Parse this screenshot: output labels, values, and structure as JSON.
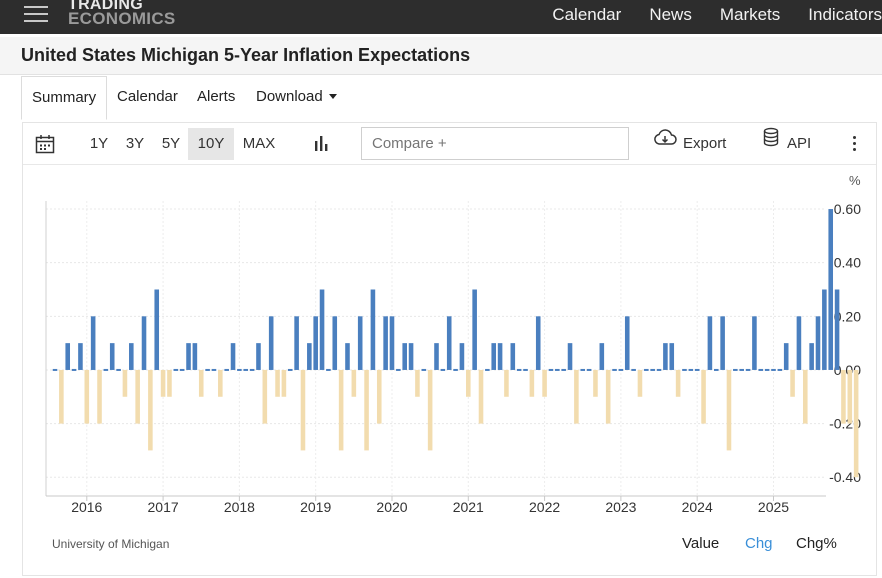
{
  "nav": {
    "logo_line1": "TRADING",
    "logo_line2": "ECONOMICS",
    "links": [
      "Calendar",
      "News",
      "Markets",
      "Indicators"
    ]
  },
  "page_title": "United States Michigan 5-Year Inflation Expectations",
  "tabs": [
    "Summary",
    "Calendar",
    "Alerts",
    "Download"
  ],
  "toolbar": {
    "ranges": [
      "1Y",
      "3Y",
      "5Y",
      "10Y",
      "MAX"
    ],
    "selected_range": "10Y",
    "compare_placeholder": "Compare +",
    "export_label": "Export",
    "api_label": "API"
  },
  "chart_unit": "%",
  "source": "University of Michigan",
  "view_modes": [
    "Value",
    "Chg",
    "Chg%"
  ],
  "active_mode": "Chg",
  "colors": {
    "positive": "#4a7fbf",
    "negative": "#f2dcae",
    "active_mode": "#3a8fd8",
    "nav_bg": "#2d2d2d"
  },
  "chart_data": {
    "type": "bar",
    "title": "",
    "xlabel": "",
    "ylabel": "",
    "x_tick_labels": [
      "2016",
      "2017",
      "2018",
      "2019",
      "2020",
      "2021",
      "2022",
      "2023",
      "2024",
      "2025"
    ],
    "y_tick_labels": [
      "0.60",
      "0.40",
      "0.20",
      "0.00",
      "-0.20",
      "-0.40"
    ],
    "ylim": [
      -0.47,
      0.63
    ],
    "y_axis_position": "right",
    "grid": true,
    "start_month": "2015-08",
    "end_month": "2025-08",
    "values": [
      0.0,
      -0.2,
      0.1,
      0.0,
      0.1,
      -0.2,
      0.2,
      -0.2,
      0.0,
      0.1,
      0.0,
      -0.1,
      0.1,
      -0.2,
      0.2,
      -0.3,
      0.3,
      -0.1,
      -0.1,
      0.0,
      0.0,
      0.1,
      0.1,
      -0.1,
      0.0,
      0.0,
      -0.1,
      0.0,
      0.1,
      0.0,
      0.0,
      0.0,
      0.1,
      -0.2,
      0.2,
      -0.1,
      -0.1,
      0.0,
      0.2,
      -0.3,
      0.1,
      0.2,
      0.3,
      0.0,
      0.2,
      -0.3,
      0.1,
      -0.1,
      0.2,
      -0.3,
      0.3,
      -0.2,
      0.2,
      0.2,
      0.0,
      0.1,
      0.1,
      -0.1,
      0.0,
      -0.3,
      0.1,
      0.0,
      0.2,
      0.0,
      0.1,
      -0.1,
      0.3,
      -0.2,
      0.0,
      0.1,
      0.1,
      -0.1,
      0.1,
      0.0,
      0.0,
      -0.1,
      0.2,
      -0.1,
      0.0,
      0.0,
      0.0,
      0.1,
      -0.2,
      0.0,
      0.0,
      -0.1,
      0.1,
      -0.2,
      0.0,
      0.0,
      0.2,
      0.0,
      -0.1,
      0.0,
      0.0,
      0.0,
      0.1,
      0.1,
      -0.1,
      0.0,
      0.0,
      0.0,
      -0.2,
      0.2,
      0.0,
      0.2,
      -0.3,
      0.0,
      0.0,
      0.0,
      0.2,
      0.0,
      0.0,
      0.0,
      0.0,
      0.1,
      -0.1,
      0.2,
      -0.2,
      0.1,
      0.2,
      0.3,
      0.6,
      0.3,
      -0.2,
      -0.2,
      -0.4
    ]
  }
}
